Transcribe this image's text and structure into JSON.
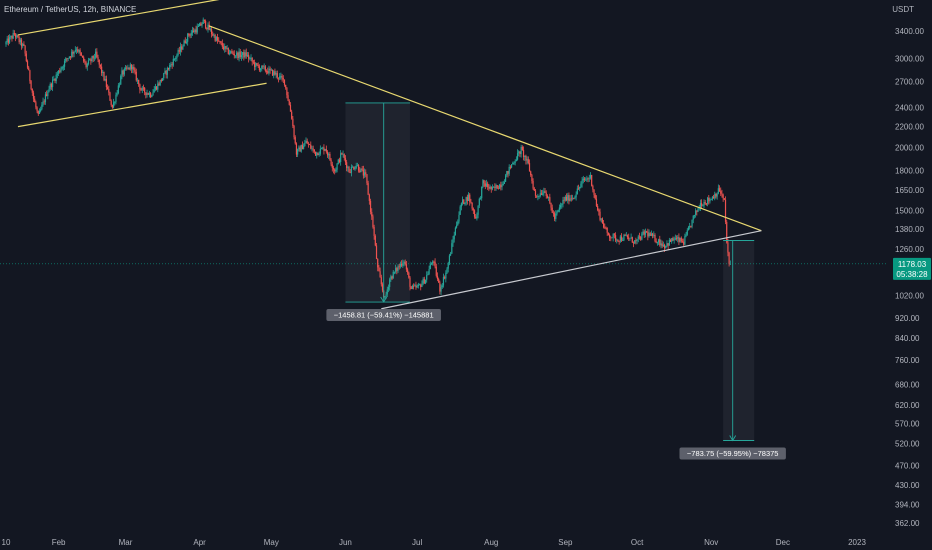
{
  "header": {
    "symbol_title": "Ethereum / TetherUS, 12h, BINANCE",
    "axis_unit": "USDT"
  },
  "chart_data": {
    "type": "candlestick",
    "title": "Ethereum / TetherUS, 12h, BINANCE",
    "ylabel": "USDT",
    "y_scale": "log",
    "grid": false,
    "ylim": [
      340,
      4200
    ],
    "y_ticks": [
      3400,
      3000,
      2700,
      2400,
      2200,
      2000,
      1800,
      1650,
      1500,
      1380,
      1260,
      1020,
      920,
      840,
      760,
      680,
      620,
      570,
      520,
      470,
      430,
      394,
      362
    ],
    "y_tick_labels": [
      "3400.00",
      "3000.00",
      "2700.00",
      "2400.00",
      "2200.00",
      "2000.00",
      "1800.00",
      "1650.00",
      "1500.00",
      "1380.00",
      "1260.00",
      "1020.00",
      "920.00",
      "840.00",
      "760.00",
      "680.00",
      "620.00",
      "570.00",
      "520.00",
      "470.00",
      "430.00",
      "394.00",
      "362.00"
    ],
    "x_ticks": [
      {
        "label": "10",
        "date": "2022-01-10"
      },
      {
        "label": "Feb",
        "date": "2022-02-01"
      },
      {
        "label": "Mar",
        "date": "2022-03-01"
      },
      {
        "label": "Apr",
        "date": "2022-04-01"
      },
      {
        "label": "May",
        "date": "2022-05-01"
      },
      {
        "label": "Jun",
        "date": "2022-06-01"
      },
      {
        "label": "Jul",
        "date": "2022-07-01"
      },
      {
        "label": "Aug",
        "date": "2022-08-01"
      },
      {
        "label": "Sep",
        "date": "2022-09-01"
      },
      {
        "label": "Oct",
        "date": "2022-10-01"
      },
      {
        "label": "Nov",
        "date": "2022-11-01"
      },
      {
        "label": "Dec",
        "date": "2022-12-01"
      },
      {
        "label": "2023",
        "date": "2023-01-01"
      }
    ],
    "price_path": [
      [
        "2022-01-10",
        3200
      ],
      [
        "2022-01-14",
        3350
      ],
      [
        "2022-01-18",
        3150
      ],
      [
        "2022-01-22",
        2500
      ],
      [
        "2022-01-24",
        2300
      ],
      [
        "2022-01-28",
        2600
      ],
      [
        "2022-02-01",
        2800
      ],
      [
        "2022-02-05",
        3000
      ],
      [
        "2022-02-09",
        3150
      ],
      [
        "2022-02-13",
        2900
      ],
      [
        "2022-02-17",
        3050
      ],
      [
        "2022-02-21",
        2700
      ],
      [
        "2022-02-24",
        2400
      ],
      [
        "2022-02-28",
        2800
      ],
      [
        "2022-03-04",
        2900
      ],
      [
        "2022-03-08",
        2600
      ],
      [
        "2022-03-12",
        2550
      ],
      [
        "2022-03-16",
        2700
      ],
      [
        "2022-03-20",
        2900
      ],
      [
        "2022-03-24",
        3100
      ],
      [
        "2022-03-28",
        3350
      ],
      [
        "2022-04-01",
        3450
      ],
      [
        "2022-04-03",
        3550
      ],
      [
        "2022-04-06",
        3400
      ],
      [
        "2022-04-09",
        3250
      ],
      [
        "2022-04-13",
        3100
      ],
      [
        "2022-04-17",
        3050
      ],
      [
        "2022-04-21",
        3050
      ],
      [
        "2022-04-25",
        2900
      ],
      [
        "2022-04-29",
        2850
      ],
      [
        "2022-05-03",
        2800
      ],
      [
        "2022-05-07",
        2700
      ],
      [
        "2022-05-10",
        2300
      ],
      [
        "2022-05-12",
        1950
      ],
      [
        "2022-05-16",
        2050
      ],
      [
        "2022-05-20",
        1950
      ],
      [
        "2022-05-24",
        2000
      ],
      [
        "2022-05-28",
        1800
      ],
      [
        "2022-05-31",
        1950
      ],
      [
        "2022-06-03",
        1800
      ],
      [
        "2022-06-06",
        1850
      ],
      [
        "2022-06-10",
        1750
      ],
      [
        "2022-06-13",
        1400
      ],
      [
        "2022-06-15",
        1150
      ],
      [
        "2022-06-18",
        1000
      ],
      [
        "2022-06-20",
        1100
      ],
      [
        "2022-06-23",
        1150
      ],
      [
        "2022-06-26",
        1200
      ],
      [
        "2022-06-29",
        1050
      ],
      [
        "2022-07-02",
        1060
      ],
      [
        "2022-07-05",
        1100
      ],
      [
        "2022-07-08",
        1200
      ],
      [
        "2022-07-11",
        1050
      ],
      [
        "2022-07-14",
        1150
      ],
      [
        "2022-07-17",
        1350
      ],
      [
        "2022-07-20",
        1550
      ],
      [
        "2022-07-23",
        1600
      ],
      [
        "2022-07-26",
        1450
      ],
      [
        "2022-07-29",
        1700
      ],
      [
        "2022-08-02",
        1650
      ],
      [
        "2022-08-06",
        1700
      ],
      [
        "2022-08-10",
        1850
      ],
      [
        "2022-08-14",
        1980
      ],
      [
        "2022-08-17",
        1850
      ],
      [
        "2022-08-20",
        1600
      ],
      [
        "2022-08-24",
        1650
      ],
      [
        "2022-08-28",
        1450
      ],
      [
        "2022-09-01",
        1580
      ],
      [
        "2022-09-05",
        1600
      ],
      [
        "2022-09-09",
        1720
      ],
      [
        "2022-09-12",
        1750
      ],
      [
        "2022-09-15",
        1500
      ],
      [
        "2022-09-19",
        1350
      ],
      [
        "2022-09-23",
        1320
      ],
      [
        "2022-09-27",
        1330
      ],
      [
        "2022-10-01",
        1300
      ],
      [
        "2022-10-05",
        1360
      ],
      [
        "2022-10-09",
        1320
      ],
      [
        "2022-10-13",
        1280
      ],
      [
        "2022-10-17",
        1320
      ],
      [
        "2022-10-21",
        1300
      ],
      [
        "2022-10-25",
        1450
      ],
      [
        "2022-10-28",
        1550
      ],
      [
        "2022-11-01",
        1580
      ],
      [
        "2022-11-05",
        1650
      ],
      [
        "2022-11-07",
        1560
      ],
      [
        "2022-11-08",
        1300
      ],
      [
        "2022-11-09",
        1178
      ]
    ],
    "last_price": {
      "value": 1178.03,
      "label": "1178.03",
      "countdown": "05:38:28"
    },
    "trendlines": [
      {
        "name": "upper-channel-line",
        "color": "#e8d870",
        "points": [
          [
            "2022-01-15",
            3340
          ],
          [
            "2022-04-19",
            4000
          ]
        ]
      },
      {
        "name": "lower-channel-line",
        "color": "#e8d870",
        "points": [
          [
            "2022-01-15",
            2200
          ],
          [
            "2022-04-29",
            2680
          ]
        ]
      },
      {
        "name": "descending-resistance-line",
        "color": "#e8d870",
        "points": [
          [
            "2022-04-05",
            3480
          ],
          [
            "2022-11-22",
            1370
          ]
        ]
      },
      {
        "name": "ascending-support-line",
        "color": "#c8cad0",
        "points": [
          [
            "2022-06-16",
            960
          ],
          [
            "2022-11-22",
            1370
          ]
        ]
      }
    ],
    "measurements": [
      {
        "name": "measure-june",
        "from": [
          "2022-06-17",
          2450
        ],
        "to": [
          "2022-06-17",
          990
        ],
        "box_dates": [
          "2022-06-01",
          "2022-06-28"
        ],
        "label": "−1458.81 (−59.41%) −145881",
        "color": "#26a69a"
      },
      {
        "name": "measure-november",
        "from": [
          "2022-11-10",
          1310
        ],
        "to": [
          "2022-11-10",
          527
        ],
        "box_dates": [
          "2022-11-06",
          "2022-11-19"
        ],
        "label": "−783.75 (−59.95%) −78375",
        "color": "#26a69a"
      }
    ],
    "colors": {
      "background": "#131722",
      "up": "#26a69a",
      "down": "#ef5350",
      "text": "#b2b5be",
      "last_price": "#089981"
    }
  }
}
